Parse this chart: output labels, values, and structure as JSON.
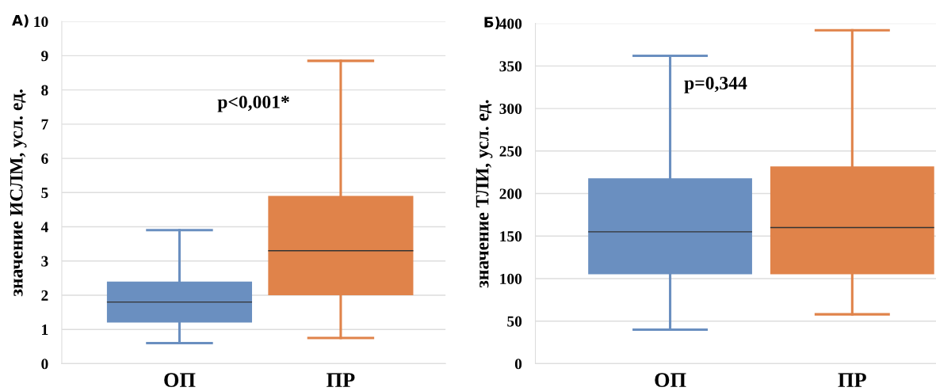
{
  "chart_data": [
    {
      "type": "box",
      "title": "А)",
      "ylabel": "значение ИСЛМ, усл. ед.",
      "categories": [
        "ОП",
        "ПР"
      ],
      "colors": [
        "#6a8fc0",
        "#e0834a"
      ],
      "boxes": [
        {
          "low": 0.6,
          "q1": 1.2,
          "median": 1.8,
          "q3": 2.4,
          "high": 3.9
        },
        {
          "low": 0.75,
          "q1": 2.0,
          "median": 3.3,
          "q3": 4.9,
          "high": 8.85
        }
      ],
      "ylim": [
        0,
        10
      ],
      "yticks": [
        0,
        1,
        2,
        3,
        4,
        5,
        6,
        7,
        8,
        9,
        10
      ],
      "grid": "y",
      "annotations": [
        "p<0,001*"
      ]
    },
    {
      "type": "box",
      "title": "Б)",
      "ylabel": "значение ТЛИ, усл. ед.",
      "categories": [
        "ОП",
        "ПР"
      ],
      "colors": [
        "#6a8fc0",
        "#e0834a"
      ],
      "boxes": [
        {
          "low": 40,
          "q1": 105,
          "median": 155,
          "q3": 218,
          "high": 362
        },
        {
          "low": 58,
          "q1": 105,
          "median": 160,
          "q3": 232,
          "high": 392
        }
      ],
      "ylim": [
        0,
        400
      ],
      "yticks": [
        0,
        50,
        100,
        150,
        200,
        250,
        300,
        350,
        400
      ],
      "grid": "y",
      "annotations": [
        "p=0,344"
      ]
    }
  ]
}
